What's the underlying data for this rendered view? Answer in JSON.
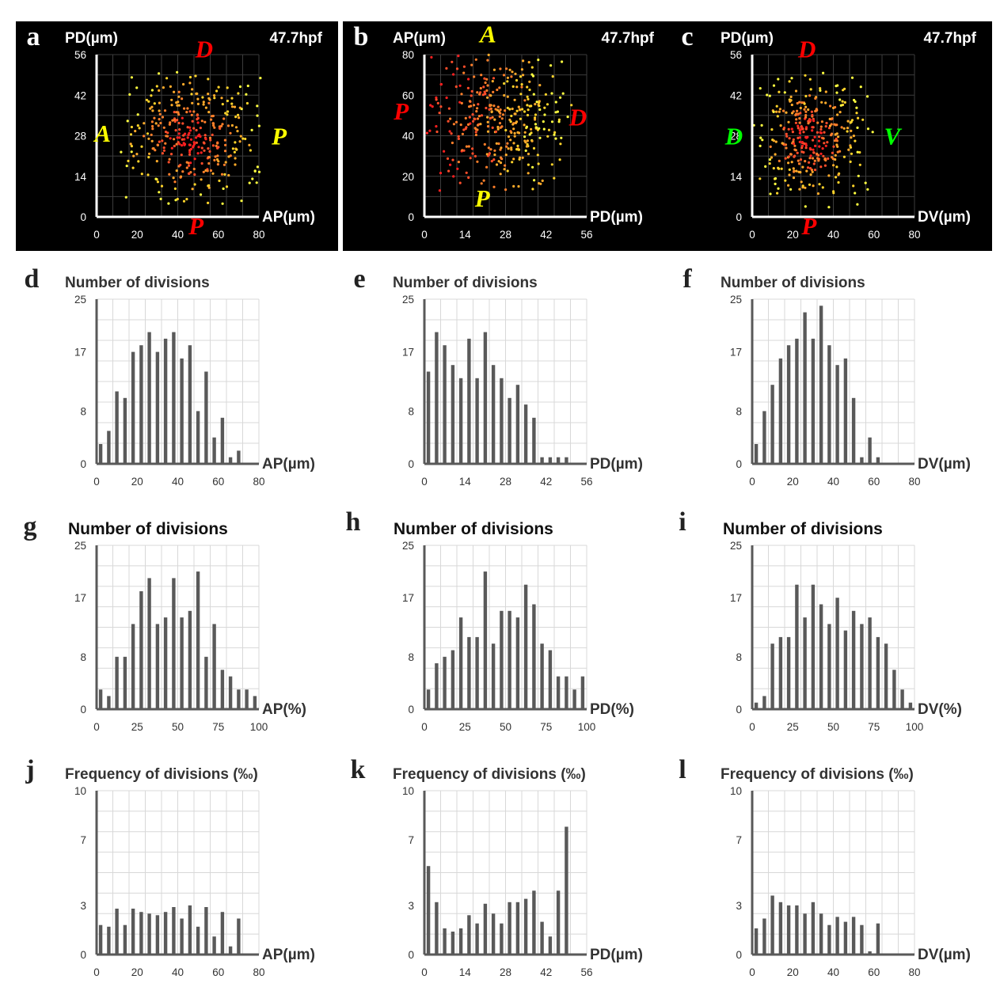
{
  "colors": {
    "scatter_bg": "#000000",
    "bar": "#595959",
    "grid_light": "#d8d8d8",
    "grid_dark": "#3c3c3c",
    "red_label": "#ff0000",
    "yellow_label": "#ffff00",
    "green_label": "#00ff00",
    "point_palette": [
      "#ff2020",
      "#ff4d2a",
      "#ff7f2a",
      "#ffab2a",
      "#ffd42a",
      "#ffff40"
    ]
  },
  "chart_data": [
    {
      "id": "a",
      "panel_label": "a",
      "type": "scatter",
      "ylabel": "PD(µm)",
      "xlabel": "AP(µm)",
      "stamp": "47.7hpf",
      "xlim": [
        0,
        80
      ],
      "ylim": [
        0,
        56
      ],
      "xticks": [
        "0",
        "20",
        "40",
        "60",
        "80"
      ],
      "yticks": [
        "0",
        "14",
        "28",
        "42",
        "56"
      ],
      "orientation_labels": [
        {
          "text": "D",
          "color": "red",
          "at": [
            53,
            55
          ]
        },
        {
          "text": "P",
          "color": "red",
          "at": [
            49,
            -6
          ]
        },
        {
          "text": "A",
          "color": "yellow",
          "at": [
            3,
            26
          ]
        },
        {
          "text": "P",
          "color": "yellow",
          "at": [
            90,
            25
          ]
        }
      ],
      "points_cluster": {
        "center": [
          46,
          27
        ],
        "spread": [
          17,
          12
        ],
        "n": 380,
        "x_range": [
          12,
          84
        ],
        "y_range": [
          3,
          50
        ],
        "gradient": "radial"
      }
    },
    {
      "id": "b",
      "panel_label": "b",
      "type": "scatter",
      "ylabel": "AP(µm)",
      "xlabel": "PD(µm)",
      "stamp": "47.7hpf",
      "xlim": [
        0,
        56
      ],
      "ylim": [
        0,
        80
      ],
      "xticks": [
        "0",
        "14",
        "28",
        "42",
        "56"
      ],
      "yticks": [
        "0",
        "20",
        "40",
        "60",
        "80"
      ],
      "orientation_labels": [
        {
          "text": "A",
          "color": "yellow",
          "at": [
            22,
            86
          ]
        },
        {
          "text": "P",
          "color": "yellow",
          "at": [
            20,
            5
          ]
        },
        {
          "text": "P",
          "color": "red",
          "at": [
            -8,
            48
          ]
        },
        {
          "text": "D",
          "color": "red",
          "at": [
            53,
            45
          ]
        }
      ],
      "points_cluster": {
        "center": [
          26,
          47
        ],
        "spread": [
          12,
          16
        ],
        "n": 380,
        "x_range": [
          0,
          52
        ],
        "y_range": [
          12,
          80
        ],
        "gradient": "left-right"
      }
    },
    {
      "id": "c",
      "panel_label": "c",
      "type": "scatter",
      "ylabel": "PD(µm)",
      "xlabel": "DV(µm)",
      "stamp": "47.7hpf",
      "xlim": [
        0,
        80
      ],
      "ylim": [
        0,
        56
      ],
      "xticks": [
        "0",
        "20",
        "40",
        "60",
        "80"
      ],
      "yticks": [
        "0",
        "14",
        "28",
        "42",
        "56"
      ],
      "orientation_labels": [
        {
          "text": "D",
          "color": "red",
          "at": [
            27,
            55
          ]
        },
        {
          "text": "P",
          "color": "red",
          "at": [
            28,
            -6
          ]
        },
        {
          "text": "D",
          "color": "green",
          "at": [
            -9,
            25
          ]
        },
        {
          "text": "V",
          "color": "green",
          "at": [
            69,
            25
          ]
        }
      ],
      "points_cluster": {
        "center": [
          28,
          27
        ],
        "spread": [
          14,
          11
        ],
        "n": 380,
        "x_range": [
          0,
          60
        ],
        "y_range": [
          3,
          50
        ],
        "gradient": "radial"
      }
    },
    {
      "id": "d",
      "panel_label": "d",
      "type": "bar",
      "title": "Number of divisions",
      "xlabel": "AP(µm)",
      "xlim": [
        0,
        80
      ],
      "ylim": [
        0,
        25
      ],
      "xticks": [
        "0",
        "20",
        "40",
        "60",
        "80"
      ],
      "yticks": [
        "0",
        "8",
        "17",
        "25"
      ],
      "x": [
        2,
        6,
        10,
        14,
        18,
        22,
        26,
        30,
        34,
        38,
        42,
        46,
        50,
        54,
        58,
        62,
        66,
        70
      ],
      "values": [
        3,
        5,
        11,
        10,
        17,
        18,
        20,
        17,
        19,
        20,
        16,
        18,
        8,
        14,
        4,
        7,
        1,
        2
      ]
    },
    {
      "id": "e",
      "panel_label": "e",
      "type": "bar",
      "title": "Number of divisions",
      "xlabel": "PD(µm)",
      "xlim": [
        0,
        56
      ],
      "ylim": [
        0,
        25
      ],
      "xticks": [
        "0",
        "14",
        "28",
        "42",
        "56"
      ],
      "yticks": [
        "0",
        "8",
        "17",
        "25"
      ],
      "x": [
        1.4,
        4.2,
        7,
        9.8,
        12.6,
        15.4,
        18.2,
        21,
        23.8,
        26.6,
        29.4,
        32.2,
        35,
        37.8,
        40.6,
        43.4,
        46.2,
        49
      ],
      "values": [
        14,
        20,
        18,
        15,
        13,
        19,
        13,
        20,
        15,
        13,
        10,
        12,
        9,
        7,
        1,
        1,
        1,
        1
      ]
    },
    {
      "id": "f",
      "panel_label": "f",
      "type": "bar",
      "title": "Number of divisions",
      "xlabel": "DV(µm)",
      "xlim": [
        0,
        80
      ],
      "ylim": [
        0,
        25
      ],
      "xticks": [
        "0",
        "20",
        "40",
        "60",
        "80"
      ],
      "yticks": [
        "0",
        "8",
        "17",
        "25"
      ],
      "x": [
        2,
        6,
        10,
        14,
        18,
        22,
        26,
        30,
        34,
        38,
        42,
        46,
        50,
        54,
        58,
        62
      ],
      "values": [
        3,
        8,
        12,
        16,
        18,
        19,
        23,
        19,
        24,
        18,
        15,
        16,
        10,
        1,
        4,
        1
      ]
    },
    {
      "id": "g",
      "panel_label": "g",
      "type": "bar",
      "title": "Number of divisions",
      "xlabel": "AP(%)",
      "xlim": [
        0,
        100
      ],
      "ylim": [
        0,
        25
      ],
      "xticks": [
        "0",
        "25",
        "50",
        "75",
        "100"
      ],
      "yticks": [
        "0",
        "8",
        "17",
        "25"
      ],
      "x": [
        2.5,
        7.5,
        12.5,
        17.5,
        22.5,
        27.5,
        32.5,
        37.5,
        42.5,
        47.5,
        52.5,
        57.5,
        62.5,
        67.5,
        72.5,
        77.5,
        82.5,
        87.5,
        92.5,
        97.5
      ],
      "values": [
        3,
        2,
        8,
        8,
        13,
        18,
        20,
        13,
        14,
        20,
        14,
        15,
        21,
        8,
        13,
        6,
        5,
        3,
        3,
        2
      ]
    },
    {
      "id": "h",
      "panel_label": "h",
      "type": "bar",
      "title": "Number of divisions",
      "xlabel": "PD(%)",
      "xlim": [
        0,
        100
      ],
      "ylim": [
        0,
        25
      ],
      "xticks": [
        "0",
        "25",
        "50",
        "75",
        "100"
      ],
      "yticks": [
        "0",
        "8",
        "17",
        "25"
      ],
      "x": [
        2.5,
        7.5,
        12.5,
        17.5,
        22.5,
        27.5,
        32.5,
        37.5,
        42.5,
        47.5,
        52.5,
        57.5,
        62.5,
        67.5,
        72.5,
        77.5,
        82.5,
        87.5,
        92.5,
        97.5
      ],
      "values": [
        3,
        7,
        8,
        9,
        14,
        11,
        11,
        21,
        10,
        15,
        15,
        14,
        19,
        16,
        10,
        9,
        5,
        5,
        3,
        5
      ]
    },
    {
      "id": "i",
      "panel_label": "i",
      "type": "bar",
      "title": "Number of divisions",
      "xlabel": "DV(%)",
      "xlim": [
        0,
        100
      ],
      "ylim": [
        0,
        25
      ],
      "xticks": [
        "0",
        "25",
        "50",
        "75",
        "100"
      ],
      "yticks": [
        "0",
        "8",
        "17",
        "25"
      ],
      "x": [
        2.5,
        7.5,
        12.5,
        17.5,
        22.5,
        27.5,
        32.5,
        37.5,
        42.5,
        47.5,
        52.5,
        57.5,
        62.5,
        67.5,
        72.5,
        77.5,
        82.5,
        87.5,
        92.5,
        97.5
      ],
      "values": [
        1,
        2,
        10,
        11,
        11,
        19,
        14,
        19,
        16,
        13,
        17,
        12,
        15,
        13,
        14,
        11,
        10,
        6,
        3,
        1
      ]
    },
    {
      "id": "j",
      "panel_label": "j",
      "type": "bar",
      "title": "Frequency of divisions (‰)",
      "xlabel": "AP(µm)",
      "xlim": [
        0,
        80
      ],
      "ylim": [
        0,
        10
      ],
      "xticks": [
        "0",
        "20",
        "40",
        "60",
        "80"
      ],
      "yticks": [
        "0",
        "3",
        "7",
        "10"
      ],
      "x": [
        2,
        6,
        10,
        14,
        18,
        22,
        26,
        30,
        34,
        38,
        42,
        46,
        50,
        54,
        58,
        62,
        66,
        70
      ],
      "values": [
        1.8,
        1.7,
        2.8,
        1.8,
        2.8,
        2.6,
        2.5,
        2.4,
        2.6,
        2.9,
        2.2,
        3.0,
        1.7,
        2.9,
        1.1,
        2.6,
        0.5,
        2.2
      ]
    },
    {
      "id": "k",
      "panel_label": "k",
      "type": "bar",
      "title": "Frequency of divisions (‰)",
      "xlabel": "PD(µm)",
      "xlim": [
        0,
        56
      ],
      "ylim": [
        0,
        10
      ],
      "xticks": [
        "0",
        "14",
        "28",
        "42",
        "56"
      ],
      "yticks": [
        "0",
        "3",
        "7",
        "10"
      ],
      "x": [
        1.4,
        4.2,
        7,
        9.8,
        12.6,
        15.4,
        18.2,
        21,
        23.8,
        26.6,
        29.4,
        32.2,
        35,
        37.8,
        40.6,
        43.4,
        46.2,
        49
      ],
      "values": [
        5.4,
        3.2,
        1.6,
        1.4,
        1.6,
        2.4,
        1.9,
        3.1,
        2.5,
        1.9,
        3.2,
        3.2,
        3.4,
        3.9,
        2.0,
        1.1,
        3.9,
        7.8
      ]
    },
    {
      "id": "l",
      "panel_label": "l",
      "type": "bar",
      "title": "Frequency of divisions (‰)",
      "xlabel": "DV(µm)",
      "xlim": [
        0,
        80
      ],
      "ylim": [
        0,
        10
      ],
      "xticks": [
        "0",
        "20",
        "40",
        "60",
        "80"
      ],
      "yticks": [
        "0",
        "3",
        "7",
        "10"
      ],
      "x": [
        2,
        6,
        10,
        14,
        18,
        22,
        26,
        30,
        34,
        38,
        42,
        46,
        50,
        54,
        58,
        62
      ],
      "values": [
        1.6,
        2.2,
        3.6,
        3.2,
        3.0,
        3.0,
        2.5,
        3.2,
        2.5,
        1.8,
        2.3,
        2.0,
        2.3,
        1.8,
        0.2,
        1.9
      ]
    }
  ]
}
